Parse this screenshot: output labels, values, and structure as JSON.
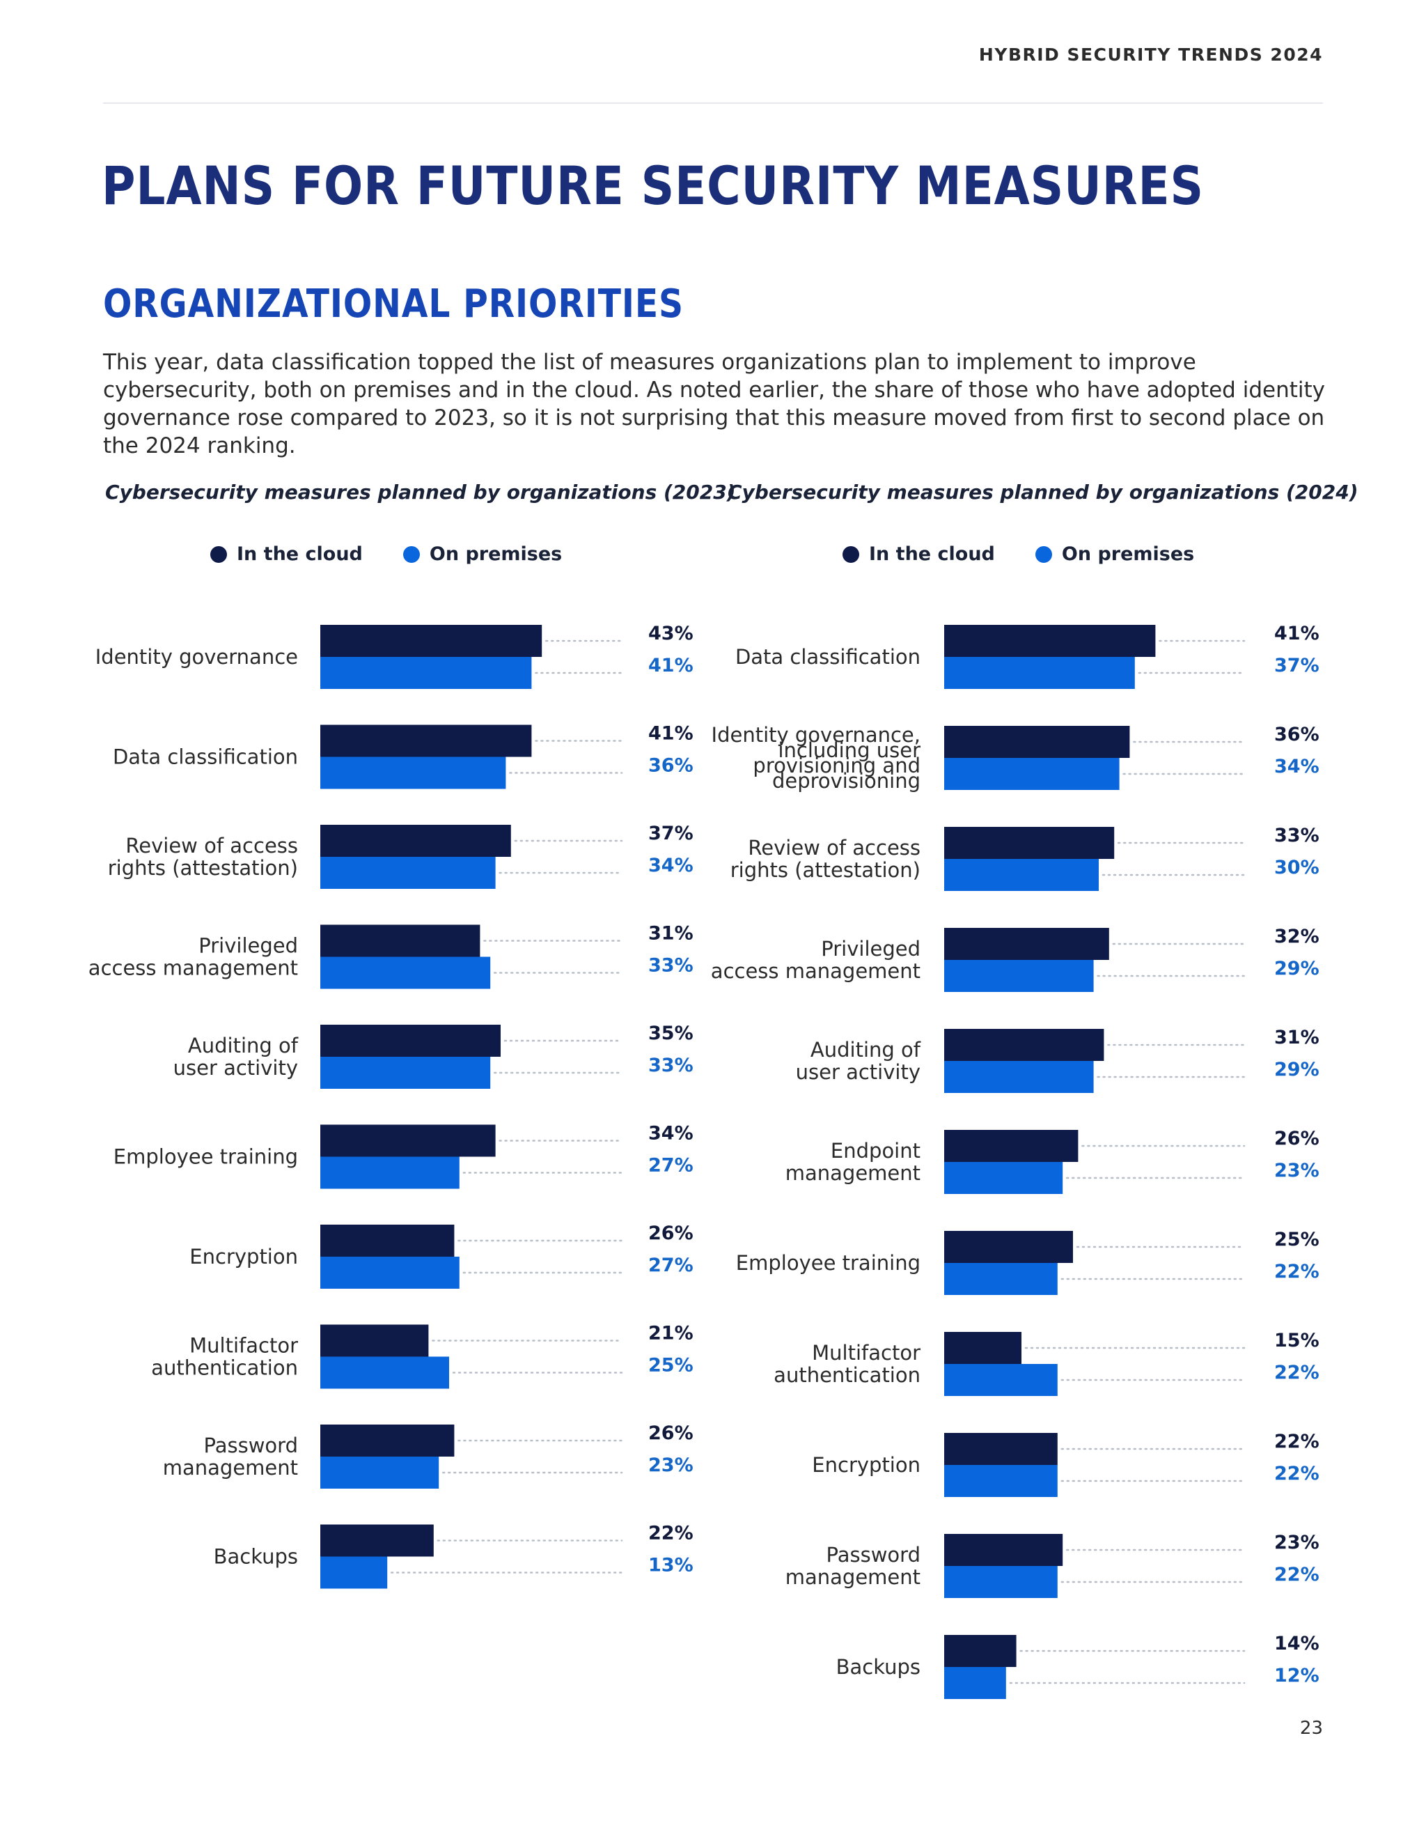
{
  "header": {
    "label": "HYBRID SECURITY TRENDS 2024"
  },
  "page": {
    "title": "PLANS FOR FUTURE SECURITY MEASURES",
    "section_title": "ORGANIZATIONAL PRIORITIES",
    "intro": "This year, data classification topped the list of measures organizations plan to implement to improve cybersecurity, both on premises and in the cloud. As noted earlier, the share of those who have adopted identity governance rose compared to 2023, so it is not surprising that this measure moved from first to second place on the 2024 ranking.",
    "page_number": "23"
  },
  "colors": {
    "cloud": "#0e1a48",
    "premises": "#0a66dc",
    "cloud_label": "#111a3a",
    "premises_label": "#1466c8",
    "dots": "#b8bec8"
  },
  "chart_data": [
    {
      "type": "bar",
      "orientation": "horizontal",
      "title": "Cybersecurity measures planned by organizations (2023)",
      "legend": [
        "In the cloud",
        "On premises"
      ],
      "legend_position": "top",
      "categories": [
        [
          "Identity governance"
        ],
        [
          "Data classification"
        ],
        [
          "Review of access",
          "rights (attestation)"
        ],
        [
          "Privileged",
          "access management"
        ],
        [
          "Auditing of",
          "user activity"
        ],
        [
          "Employee training"
        ],
        [
          "Encryption"
        ],
        [
          "Multifactor",
          "authentication"
        ],
        [
          "Password",
          "management"
        ],
        [
          "Backups"
        ]
      ],
      "series": [
        {
          "name": "In the cloud",
          "values": [
            43,
            41,
            37,
            31,
            35,
            34,
            26,
            21,
            26,
            22
          ]
        },
        {
          "name": "On premises",
          "values": [
            41,
            36,
            34,
            33,
            33,
            27,
            27,
            25,
            23,
            13
          ]
        }
      ],
      "value_labels": [
        [
          "43%",
          "41%",
          "37%",
          "31%",
          "35%",
          "34%",
          "26%",
          "21%",
          "26%",
          "22%"
        ],
        [
          "41%",
          "36%",
          "34%",
          "33%",
          "33%",
          "27%",
          "27%",
          "25%",
          "23%",
          "13%"
        ]
      ],
      "unit": "%",
      "xlim": [
        0,
        100
      ],
      "grid": false
    },
    {
      "type": "bar",
      "orientation": "horizontal",
      "title": "Cybersecurity measures planned by organizations (2024)",
      "legend": [
        "In the cloud",
        "On premises"
      ],
      "legend_position": "top",
      "categories": [
        [
          "Data classification"
        ],
        [
          "Identity governance,",
          "including user",
          "provisioning and",
          "deprovisioning"
        ],
        [
          "Review of access",
          "rights (attestation)"
        ],
        [
          "Privileged",
          "access management"
        ],
        [
          "Auditing of",
          "user activity"
        ],
        [
          "Endpoint",
          "management"
        ],
        [
          "Employee training"
        ],
        [
          "Multifactor",
          "authentication"
        ],
        [
          "Encryption"
        ],
        [
          "Password",
          "management"
        ],
        [
          "Backups"
        ]
      ],
      "series": [
        {
          "name": "In the cloud",
          "values": [
            41,
            36,
            33,
            32,
            31,
            26,
            25,
            15,
            22,
            23,
            14
          ]
        },
        {
          "name": "On premises",
          "values": [
            37,
            34,
            30,
            29,
            29,
            23,
            22,
            22,
            22,
            22,
            12
          ]
        }
      ],
      "value_labels": [
        [
          "41%",
          "36%",
          "33%",
          "32%",
          "31%",
          "26%",
          "25%",
          "15%",
          "22%",
          "23%",
          "14%"
        ],
        [
          "37%",
          "34%",
          "30%",
          "29%",
          "29%",
          "23%",
          "22%",
          "22%",
          "22%",
          "22%",
          "12%"
        ]
      ],
      "unit": "%",
      "xlim": [
        0,
        100
      ],
      "grid": false
    }
  ]
}
